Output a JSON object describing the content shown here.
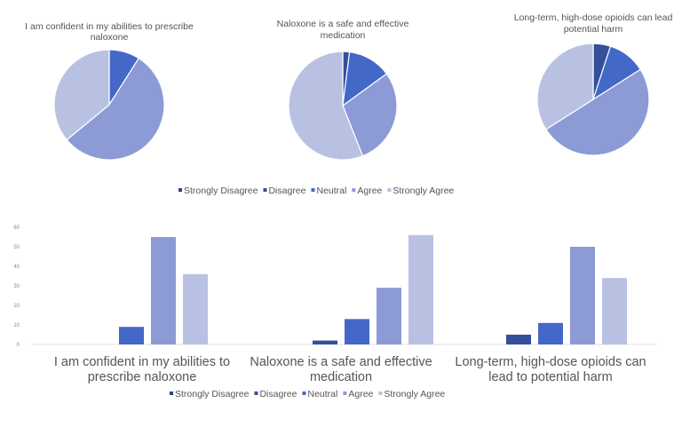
{
  "chart_data": [
    {
      "type": "pie",
      "charts": [
        {
          "title": [
            "I am confident in my abilities to prescribe",
            "naloxone"
          ],
          "values": [
            0,
            0,
            9,
            55,
            36
          ]
        },
        {
          "title": [
            "Naloxone is a safe and effective",
            "medication"
          ],
          "values": [
            0,
            2,
            13,
            29,
            56
          ]
        },
        {
          "title": [
            "Long-term, high-dose opioids can lead",
            "potential harm"
          ],
          "values": [
            0,
            5,
            11,
            50,
            34
          ]
        }
      ],
      "legend": [
        "Strongly Disagree",
        "Disagree",
        "Neutral",
        "Agree",
        "Strongly Agree"
      ],
      "legend_position": "bottom"
    },
    {
      "type": "bar",
      "categories": [
        [
          "I am confident in my abilities to",
          "prescribe naloxone"
        ],
        [
          "Naloxone is a safe and effective",
          "medication"
        ],
        [
          "Long-term, high-dose opioids can",
          "lead to potential harm"
        ]
      ],
      "series": [
        {
          "name": "Strongly Disagree",
          "values": [
            0,
            0,
            0
          ]
        },
        {
          "name": "Disagree",
          "values": [
            0,
            2,
            5
          ]
        },
        {
          "name": "Neutral",
          "values": [
            9,
            13,
            11
          ]
        },
        {
          "name": "Agree",
          "values": [
            55,
            29,
            50
          ]
        },
        {
          "name": "Strongly Agree",
          "values": [
            36,
            56,
            34
          ]
        }
      ],
      "ylim": [
        0,
        60
      ],
      "yticks": [
        "0",
        "10",
        "20",
        "30",
        "40",
        "50",
        "60"
      ],
      "grid": false,
      "legend_position": "bottom"
    }
  ],
  "colors": [
    "#2c4580",
    "#34509a",
    "#4468c8",
    "#8c9bd6",
    "#b9c1e3"
  ]
}
